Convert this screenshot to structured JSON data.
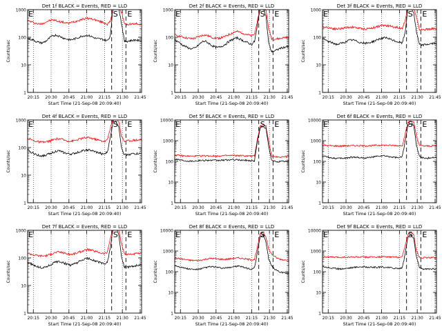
{
  "chart_data": [
    {
      "type": "line",
      "title": "Det 1f BLACK = Events, RED = LLD",
      "xlabel": "Start Time (21-Sep-08 20:09:40)",
      "ylabel": "Counts/sec",
      "xticks": [
        "20:15",
        "20:30",
        "20:45",
        "21:00",
        "21:15",
        "21:30",
        "21:45"
      ],
      "yticks": [
        "1",
        "10",
        "100",
        "1000"
      ],
      "markers": [
        "E",
        "S",
        "E"
      ],
      "series": [
        {
          "color": "#ff0000",
          "values": [
            400,
            370,
            340,
            320,
            300,
            310,
            340,
            380,
            410,
            420,
            400,
            370,
            360,
            340,
            320,
            330,
            360,
            380,
            420,
            450,
            470,
            480,
            470,
            450,
            420,
            380,
            360,
            330,
            300,
            360,
            1200,
            1200,
            1200,
            800,
            300,
            290,
            300,
            300,
            310,
            300,
            300
          ]
        },
        {
          "color": "#000000",
          "values": [
            90,
            85,
            80,
            70,
            65,
            62,
            68,
            80,
            100,
            115,
            120,
            110,
            100,
            90,
            85,
            80,
            85,
            90,
            100,
            110,
            115,
            118,
            110,
            100,
            90,
            88,
            85,
            80,
            75,
            110,
            1200,
            1200,
            1200,
            300,
            70,
            72,
            75,
            78,
            80,
            75,
            75
          ]
        }
      ]
    },
    {
      "type": "line",
      "title": "Det 2f BLACK = Events, RED = LLD",
      "xlabel": "Start Time (21-Sep-08 20:09:40)",
      "ylabel": "Counts/sec",
      "xticks": [
        "20:15",
        "20:30",
        "20:45",
        "21:00",
        "21:15",
        "21:30",
        "21:45"
      ],
      "yticks": [
        "1",
        "10",
        "100",
        "1000"
      ],
      "markers": [
        "E",
        "S",
        "E"
      ],
      "series": [
        {
          "color": "#ff0000",
          "values": [
            120,
            115,
            108,
            100,
            95,
            90,
            88,
            92,
            100,
            110,
            120,
            118,
            110,
            100,
            95,
            92,
            95,
            100,
            110,
            125,
            140,
            155,
            160,
            150,
            140,
            130,
            120,
            110,
            130,
            400,
            1200,
            1200,
            1000,
            200,
            90,
            85,
            88,
            90,
            95,
            100,
            100
          ]
        },
        {
          "color": "#000000",
          "values": [
            80,
            70,
            60,
            50,
            45,
            40,
            38,
            40,
            48,
            60,
            72,
            70,
            60,
            50,
            45,
            42,
            45,
            50,
            58,
            70,
            80,
            90,
            95,
            85,
            75,
            68,
            60,
            55,
            70,
            250,
            1200,
            1200,
            600,
            60,
            30,
            32,
            35,
            40,
            42,
            45,
            45
          ]
        }
      ]
    },
    {
      "type": "line",
      "title": "Det 3f BLACK = Events, RED = LLD",
      "xlabel": "Start Time (21-Sep-08 20:09:40)",
      "ylabel": "Counts/sec",
      "xticks": [
        "20:15",
        "20:30",
        "20:45",
        "21:00",
        "21:15",
        "21:30",
        "21:45"
      ],
      "yticks": [
        "1",
        "10",
        "100",
        "1000"
      ],
      "markers": [
        "E",
        "S",
        "E"
      ],
      "series": [
        {
          "color": "#ff0000",
          "values": [
            240,
            235,
            225,
            215,
            205,
            200,
            205,
            210,
            220,
            230,
            235,
            230,
            220,
            210,
            205,
            200,
            205,
            215,
            225,
            240,
            255,
            265,
            270,
            260,
            250,
            240,
            230,
            220,
            210,
            400,
            1200,
            1200,
            1200,
            500,
            190,
            185,
            190,
            195,
            200,
            205,
            205
          ]
        },
        {
          "color": "#000000",
          "values": [
            90,
            80,
            70,
            65,
            60,
            55,
            58,
            62,
            68,
            75,
            80,
            78,
            72,
            66,
            62,
            60,
            62,
            66,
            72,
            80,
            88,
            92,
            95,
            90,
            82,
            76,
            70,
            65,
            62,
            150,
            1200,
            1200,
            800,
            150,
            55,
            52,
            54,
            56,
            58,
            60,
            60
          ]
        }
      ]
    },
    {
      "type": "line",
      "title": "Det 4f BLACK = Events, RED = LLD",
      "xlabel": "Start Time (21-Sep-08 20:09:40)",
      "ylabel": "Counts/sec",
      "xticks": [
        "20:15",
        "20:30",
        "20:45",
        "21:00",
        "21:15",
        "21:30",
        "21:45"
      ],
      "yticks": [
        "1",
        "10",
        "100",
        "1000"
      ],
      "markers": [
        "E",
        "S",
        "E"
      ],
      "series": [
        {
          "color": "#ff0000",
          "values": [
            220,
            200,
            180,
            170,
            160,
            155,
            158,
            165,
            175,
            190,
            205,
            210,
            200,
            185,
            175,
            170,
            175,
            185,
            200,
            215,
            225,
            230,
            225,
            210,
            195,
            185,
            175,
            170,
            190,
            500,
            1100,
            1100,
            900,
            250,
            170,
            175,
            180,
            185,
            190,
            190,
            190
          ]
        },
        {
          "color": "#000000",
          "values": [
            80,
            70,
            62,
            56,
            52,
            50,
            52,
            56,
            62,
            68,
            74,
            76,
            70,
            64,
            60,
            58,
            60,
            64,
            70,
            76,
            80,
            82,
            80,
            74,
            68,
            64,
            60,
            58,
            70,
            220,
            900,
            900,
            600,
            90,
            55,
            56,
            58,
            60,
            60,
            60,
            60
          ]
        }
      ]
    },
    {
      "type": "line",
      "title": "Det 5f BLACK = Events, RED = LLD",
      "xlabel": "Start Time (21-Sep-08 20:09:40)",
      "ylabel": "Counts/sec",
      "xticks": [
        "20:15",
        "20:30",
        "20:45",
        "21:00",
        "21:15",
        "21:30",
        "21:45"
      ],
      "yticks": [
        "1",
        "10",
        "100",
        "1000",
        "10000"
      ],
      "markers": [
        "E",
        "S",
        "E"
      ],
      "series": [
        {
          "color": "#ff0000",
          "values": [
            200,
            195,
            190,
            185,
            180,
            178,
            176,
            178,
            180,
            182,
            185,
            186,
            185,
            183,
            182,
            182,
            184,
            186,
            188,
            190,
            192,
            192,
            190,
            188,
            186,
            184,
            182,
            180,
            178,
            1200,
            5000,
            6000,
            5000,
            900,
            180,
            170,
            165,
            165,
            168,
            170,
            170
          ]
        },
        {
          "color": "#000000",
          "values": [
            130,
            125,
            118,
            112,
            108,
            105,
            104,
            106,
            108,
            110,
            112,
            114,
            113,
            111,
            110,
            110,
            112,
            114,
            116,
            118,
            120,
            120,
            118,
            116,
            114,
            112,
            110,
            108,
            106,
            900,
            4000,
            5000,
            4000,
            500,
            110,
            100,
            98,
            98,
            100,
            102,
            102
          ]
        }
      ]
    },
    {
      "type": "line",
      "title": "Det 6f BLACK = Events, RED = LLD",
      "xlabel": "Start Time (21-Sep-08 20:09:40)",
      "ylabel": "Counts/sec",
      "xticks": [
        "20:15",
        "20:30",
        "20:45",
        "21:00",
        "21:15",
        "21:30",
        "21:45"
      ],
      "yticks": [
        "1",
        "10",
        "100",
        "1000",
        "10000"
      ],
      "markers": [
        "E",
        "S",
        "E"
      ],
      "series": [
        {
          "color": "#ff0000",
          "values": [
            600,
            590,
            580,
            570,
            560,
            555,
            552,
            555,
            560,
            565,
            570,
            575,
            575,
            570,
            565,
            565,
            570,
            575,
            585,
            595,
            600,
            605,
            600,
            595,
            590,
            585,
            580,
            575,
            600,
            2000,
            8000,
            9000,
            8000,
            1500,
            600,
            560,
            550,
            550,
            560,
            570,
            570
          ]
        },
        {
          "color": "#000000",
          "values": [
            180,
            170,
            160,
            150,
            145,
            140,
            138,
            140,
            145,
            150,
            156,
            160,
            158,
            152,
            148,
            146,
            150,
            156,
            164,
            172,
            180,
            184,
            180,
            172,
            164,
            158,
            152,
            148,
            170,
            900,
            6000,
            7000,
            5500,
            600,
            170,
            150,
            145,
            145,
            150,
            155,
            155
          ]
        }
      ]
    },
    {
      "type": "line",
      "title": "Det 7f BLACK = Events, RED = LLD",
      "xlabel": "Start Time (21-Sep-08 20:09:40)",
      "ylabel": "Counts/sec",
      "xticks": [
        "20:15",
        "20:30",
        "20:45",
        "21:00",
        "21:15",
        "21:30",
        "21:45"
      ],
      "yticks": [
        "1",
        "10",
        "100",
        "1000"
      ],
      "markers": [
        "E",
        "S",
        "E"
      ],
      "series": [
        {
          "color": "#ff0000",
          "values": [
            150,
            140,
            130,
            125,
            120,
            118,
            120,
            125,
            135,
            148,
            160,
            165,
            158,
            148,
            140,
            135,
            138,
            148,
            160,
            175,
            190,
            200,
            195,
            182,
            170,
            160,
            150,
            145,
            160,
            500,
            1200,
            1200,
            1000,
            300,
            140,
            135,
            138,
            140,
            142,
            145,
            145
          ]
        },
        {
          "color": "#000000",
          "values": [
            70,
            62,
            55,
            50,
            46,
            44,
            46,
            50,
            56,
            64,
            72,
            75,
            70,
            64,
            58,
            55,
            58,
            64,
            72,
            82,
            90,
            95,
            92,
            84,
            76,
            70,
            64,
            60,
            70,
            220,
            1200,
            1200,
            700,
            100,
            48,
            46,
            48,
            50,
            52,
            54,
            54
          ]
        }
      ]
    },
    {
      "type": "line",
      "title": "Det 8f BLACK = Events, RED = LLD",
      "xlabel": "Start Time (21-Sep-08 20:09:40)",
      "ylabel": "Counts/sec",
      "xticks": [
        "20:15",
        "20:30",
        "20:45",
        "21:00",
        "21:15",
        "21:30",
        "21:45"
      ],
      "yticks": [
        "1",
        "10",
        "100",
        "1000",
        "10000"
      ],
      "markers": [
        "E",
        "S",
        "E"
      ],
      "series": [
        {
          "color": "#ff0000",
          "values": [
            450,
            440,
            420,
            400,
            380,
            360,
            350,
            345,
            350,
            360,
            380,
            410,
            430,
            440,
            430,
            410,
            400,
            395,
            400,
            410,
            430,
            450,
            460,
            450,
            430,
            410,
            390,
            380,
            400,
            1500,
            7000,
            8000,
            5000,
            1200,
            700,
            550,
            450,
            400,
            380,
            370,
            370
          ]
        },
        {
          "color": "#000000",
          "values": [
            200,
            185,
            170,
            155,
            145,
            135,
            130,
            128,
            130,
            135,
            145,
            160,
            170,
            175,
            170,
            160,
            152,
            148,
            150,
            158,
            170,
            182,
            186,
            178,
            165,
            152,
            140,
            132,
            150,
            800,
            5000,
            6000,
            3000,
            400,
            200,
            140,
            110,
            95,
            90,
            88,
            88
          ]
        }
      ]
    },
    {
      "type": "line",
      "title": "Det 9f BLACK = Events, RED = LLD",
      "xlabel": "Start Time (21-Sep-08 20:09:40)",
      "ylabel": "Counts/sec",
      "xticks": [
        "20:15",
        "20:30",
        "20:45",
        "21:00",
        "21:15",
        "21:30",
        "21:45"
      ],
      "yticks": [
        "1",
        "10",
        "100",
        "1000",
        "10000"
      ],
      "markers": [
        "E",
        "S",
        "E"
      ],
      "series": [
        {
          "color": "#ff0000",
          "values": [
            520,
            515,
            510,
            505,
            500,
            498,
            496,
            498,
            500,
            502,
            505,
            508,
            510,
            510,
            508,
            506,
            505,
            506,
            508,
            512,
            516,
            520,
            520,
            518,
            515,
            512,
            508,
            505,
            520,
            1800,
            7000,
            8000,
            6000,
            1000,
            500,
            480,
            470,
            470,
            475,
            480,
            480
          ]
        },
        {
          "color": "#000000",
          "values": [
            180,
            170,
            160,
            150,
            145,
            140,
            138,
            140,
            145,
            150,
            156,
            162,
            168,
            172,
            174,
            172,
            168,
            164,
            162,
            162,
            164,
            166,
            164,
            160,
            155,
            150,
            146,
            142,
            160,
            700,
            5000,
            6000,
            4000,
            500,
            160,
            140,
            135,
            135,
            138,
            140,
            140
          ]
        }
      ]
    }
  ]
}
